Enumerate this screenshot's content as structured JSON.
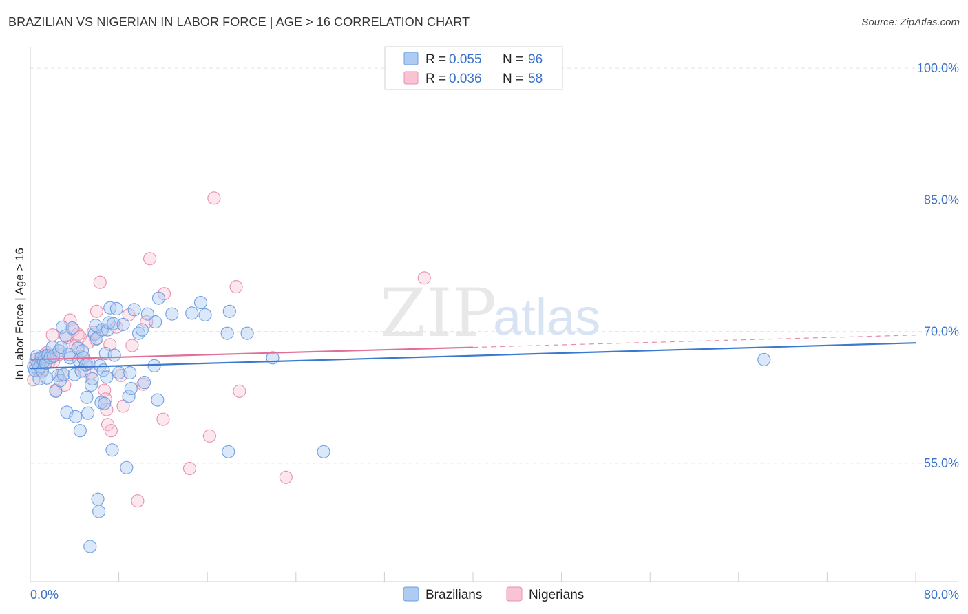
{
  "title": "BRAZILIAN VS NIGERIAN IN LABOR FORCE | AGE > 16 CORRELATION CHART",
  "source": "Source: ZipAtlas.com",
  "watermark": {
    "zip": "ZIP",
    "atlas": "atlas"
  },
  "legend": {
    "r_label": "R =",
    "n_label": "N =",
    "rows": [
      {
        "r": "0.055",
        "n": "96",
        "fill": "#aecbf2",
        "stroke": "#6f9fe0"
      },
      {
        "r": "0.036",
        "n": "58",
        "fill": "#f8c4d4",
        "stroke": "#ea8fae"
      }
    ]
  },
  "bottom_legend": [
    {
      "label": "Brazilians",
      "fill": "#aecbf2",
      "stroke": "#6f9fe0"
    },
    {
      "label": "Nigerians",
      "fill": "#f8c4d4",
      "stroke": "#ea8fae"
    }
  ],
  "chart_data": {
    "type": "scatter",
    "title": "BRAZILIAN VS NIGERIAN IN LABOR FORCE | AGE > 16 CORRELATION CHART",
    "xlabel": "",
    "ylabel": "In Labor Force | Age > 16",
    "xlim": [
      0,
      80
    ],
    "ylim": [
      41.5,
      101.5
    ],
    "x_tick_labels": [
      {
        "value": 0,
        "label": "0.0%"
      },
      {
        "value": 80,
        "label": "80.0%"
      }
    ],
    "y_tick_labels": [
      {
        "value": 100,
        "label": "100.0%"
      },
      {
        "value": 85,
        "label": "85.0%"
      },
      {
        "value": 70,
        "label": "70.0%"
      },
      {
        "value": 55,
        "label": "55.0%"
      }
    ],
    "x_minor_ticks": [
      8,
      16,
      24,
      32,
      40,
      48,
      56,
      64,
      72,
      80
    ],
    "grid": true,
    "colors": {
      "brazilians": "#3b78d0",
      "nigerians": "#e0709a"
    },
    "series": [
      {
        "name": "Brazilians",
        "color": "#3b78d0",
        "trend": {
          "x0": 0,
          "y0": 65.8,
          "x1": 80,
          "y1": 68.7,
          "dash_from": null
        },
        "points": [
          [
            0.3,
            66.0
          ],
          [
            0.4,
            65.6
          ],
          [
            0.5,
            66.8
          ],
          [
            0.6,
            67.2
          ],
          [
            0.7,
            66.3
          ],
          [
            0.8,
            64.6
          ],
          [
            0.9,
            66.0
          ],
          [
            1.0,
            67.0
          ],
          [
            1.1,
            65.5
          ],
          [
            1.2,
            66.6
          ],
          [
            1.3,
            67.1
          ],
          [
            1.4,
            66.4
          ],
          [
            1.5,
            64.7
          ],
          [
            1.6,
            67.3
          ],
          [
            1.8,
            67.0
          ],
          [
            2.0,
            68.2
          ],
          [
            2.1,
            67.2
          ],
          [
            2.3,
            63.2
          ],
          [
            2.5,
            65.0
          ],
          [
            2.6,
            67.8
          ],
          [
            2.7,
            64.4
          ],
          [
            2.8,
            68.2
          ],
          [
            2.9,
            70.5
          ],
          [
            3.0,
            65.1
          ],
          [
            3.2,
            69.5
          ],
          [
            3.3,
            60.8
          ],
          [
            3.5,
            67.4
          ],
          [
            3.6,
            67.0
          ],
          [
            3.8,
            70.4
          ],
          [
            4.0,
            65.1
          ],
          [
            4.1,
            60.3
          ],
          [
            4.3,
            68.1
          ],
          [
            4.4,
            66.7
          ],
          [
            4.5,
            58.7
          ],
          [
            4.6,
            65.5
          ],
          [
            4.7,
            67.8
          ],
          [
            4.8,
            67.0
          ],
          [
            5.0,
            66.2
          ],
          [
            5.1,
            62.5
          ],
          [
            5.2,
            60.7
          ],
          [
            5.3,
            66.4
          ],
          [
            5.5,
            63.9
          ],
          [
            5.6,
            64.6
          ],
          [
            5.8,
            69.7
          ],
          [
            5.9,
            70.7
          ],
          [
            6.0,
            69.2
          ],
          [
            6.1,
            50.9
          ],
          [
            6.2,
            49.5
          ],
          [
            6.3,
            66.1
          ],
          [
            6.4,
            61.9
          ],
          [
            6.5,
            70.2
          ],
          [
            6.6,
            65.6
          ],
          [
            6.7,
            61.8
          ],
          [
            6.8,
            67.5
          ],
          [
            6.9,
            64.8
          ],
          [
            7.0,
            70.2
          ],
          [
            7.1,
            71.0
          ],
          [
            7.2,
            72.7
          ],
          [
            7.4,
            56.5
          ],
          [
            7.5,
            70.9
          ],
          [
            7.6,
            67.3
          ],
          [
            7.8,
            72.6
          ],
          [
            8.0,
            65.3
          ],
          [
            8.4,
            70.8
          ],
          [
            8.7,
            54.5
          ],
          [
            8.9,
            62.6
          ],
          [
            9.0,
            65.3
          ],
          [
            9.1,
            63.5
          ],
          [
            9.4,
            72.5
          ],
          [
            9.8,
            69.8
          ],
          [
            10.1,
            70.2
          ],
          [
            10.3,
            64.2
          ],
          [
            10.6,
            72.0
          ],
          [
            11.2,
            66.1
          ],
          [
            11.3,
            71.1
          ],
          [
            11.5,
            62.2
          ],
          [
            11.6,
            73.8
          ],
          [
            12.8,
            72.0
          ],
          [
            14.6,
            72.1
          ],
          [
            15.4,
            73.3
          ],
          [
            15.8,
            71.9
          ],
          [
            17.8,
            69.8
          ],
          [
            17.9,
            56.3
          ],
          [
            18.0,
            72.3
          ],
          [
            19.6,
            69.8
          ],
          [
            21.9,
            67.0
          ],
          [
            26.5,
            56.3
          ],
          [
            66.3,
            66.8
          ],
          [
            5.4,
            45.5
          ]
        ]
      },
      {
        "name": "Nigerians",
        "color": "#e0709a",
        "trend": {
          "x0": 0,
          "y0": 66.8,
          "x1": 80,
          "y1": 69.6,
          "dash_from": 40
        },
        "points": [
          [
            0.3,
            64.5
          ],
          [
            0.5,
            66.2
          ],
          [
            0.7,
            65.6
          ],
          [
            0.9,
            67.0
          ],
          [
            1.0,
            65.5
          ],
          [
            1.1,
            66.8
          ],
          [
            1.3,
            67.3
          ],
          [
            1.5,
            67.6
          ],
          [
            1.7,
            66.5
          ],
          [
            1.9,
            67.2
          ],
          [
            2.0,
            69.6
          ],
          [
            2.1,
            66.6
          ],
          [
            2.3,
            63.3
          ],
          [
            2.6,
            67.4
          ],
          [
            2.8,
            65.0
          ],
          [
            3.1,
            63.9
          ],
          [
            3.3,
            69.3
          ],
          [
            3.5,
            68.3
          ],
          [
            3.6,
            71.3
          ],
          [
            3.9,
            70.2
          ],
          [
            4.1,
            68.4
          ],
          [
            4.3,
            69.7
          ],
          [
            4.5,
            69.4
          ],
          [
            4.7,
            67.1
          ],
          [
            4.9,
            65.5
          ],
          [
            5.1,
            66.3
          ],
          [
            5.3,
            68.8
          ],
          [
            5.5,
            65.3
          ],
          [
            5.7,
            69.9
          ],
          [
            5.9,
            69.1
          ],
          [
            6.0,
            72.3
          ],
          [
            6.3,
            75.6
          ],
          [
            6.5,
            70.2
          ],
          [
            6.7,
            63.3
          ],
          [
            6.8,
            62.3
          ],
          [
            6.9,
            61.1
          ],
          [
            7.0,
            59.4
          ],
          [
            7.2,
            68.5
          ],
          [
            7.3,
            58.7
          ],
          [
            7.8,
            70.5
          ],
          [
            8.2,
            65.0
          ],
          [
            8.4,
            61.5
          ],
          [
            8.9,
            71.9
          ],
          [
            9.2,
            68.4
          ],
          [
            9.7,
            50.7
          ],
          [
            10.2,
            64.0
          ],
          [
            10.5,
            71.1
          ],
          [
            10.8,
            78.3
          ],
          [
            12.0,
            60.0
          ],
          [
            12.1,
            74.3
          ],
          [
            14.4,
            54.4
          ],
          [
            16.6,
            85.2
          ],
          [
            16.2,
            58.1
          ],
          [
            18.6,
            75.1
          ],
          [
            18.9,
            63.2
          ],
          [
            23.1,
            53.4
          ],
          [
            35.6,
            76.1
          ]
        ]
      }
    ]
  }
}
